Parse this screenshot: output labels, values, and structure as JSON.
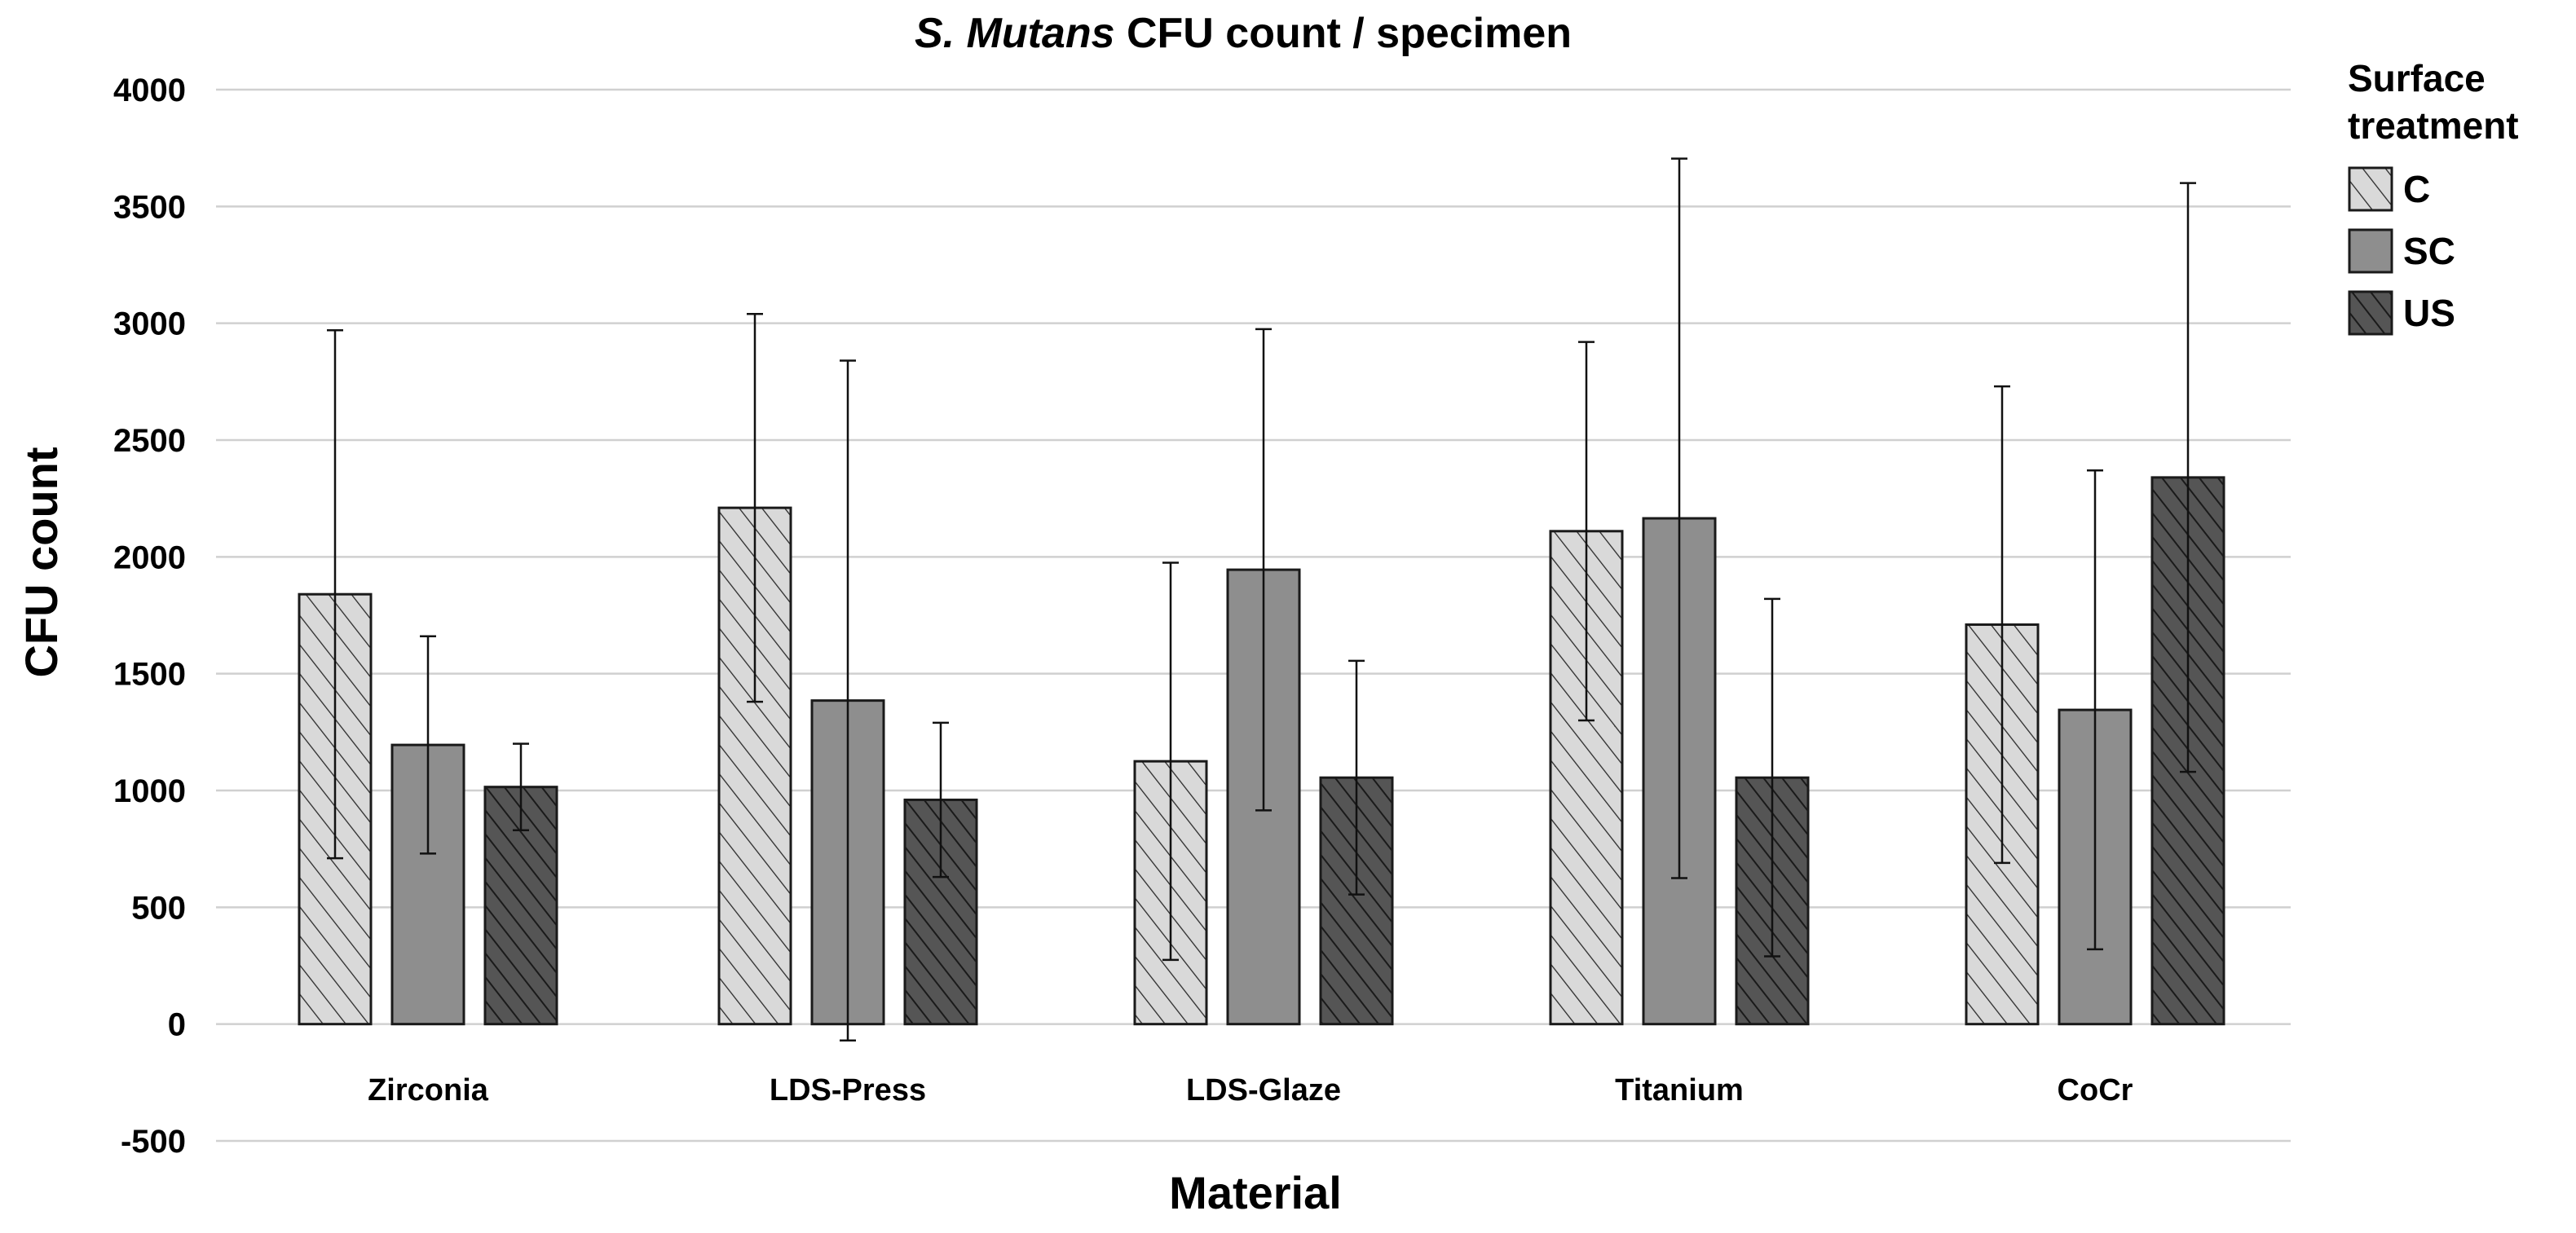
{
  "chart_data": {
    "type": "bar",
    "title_italic": "S. Mutans",
    "title_rest": " CFU count / specimen",
    "xlabel": "Material",
    "ylabel": "CFU count",
    "ylim": [
      -500,
      4000
    ],
    "yticks": [
      4000,
      3500,
      3000,
      2500,
      2000,
      1500,
      1000,
      500,
      0,
      -500
    ],
    "grid": true,
    "legend_title": "Surface treatment",
    "legend_position": "top-right",
    "categories": [
      "Zirconia",
      "LDS-Press",
      "LDS-Glaze",
      "Titanium",
      "CoCr"
    ],
    "series": [
      {
        "name": "C",
        "pattern": "light-hatch",
        "values": [
          1840,
          2210,
          1125,
          2110,
          1710
        ],
        "errors": [
          1130,
          830,
          850,
          810,
          1020
        ]
      },
      {
        "name": "SC",
        "pattern": "solid",
        "values": [
          1195,
          1385,
          1945,
          2165,
          1345
        ],
        "errors": [
          465,
          1455,
          1030,
          1540,
          1025
        ]
      },
      {
        "name": "US",
        "pattern": "dark-hatch",
        "values": [
          1015,
          960,
          1055,
          1055,
          2340
        ],
        "errors": [
          185,
          330,
          500,
          765,
          1260
        ]
      }
    ],
    "colors": {
      "light_fill": "#d9d9d9",
      "mid_fill": "#8e8e8e",
      "dark_fill": "#555555",
      "stroke": "#1a1a1a",
      "grid": "#d0d0d0"
    }
  }
}
